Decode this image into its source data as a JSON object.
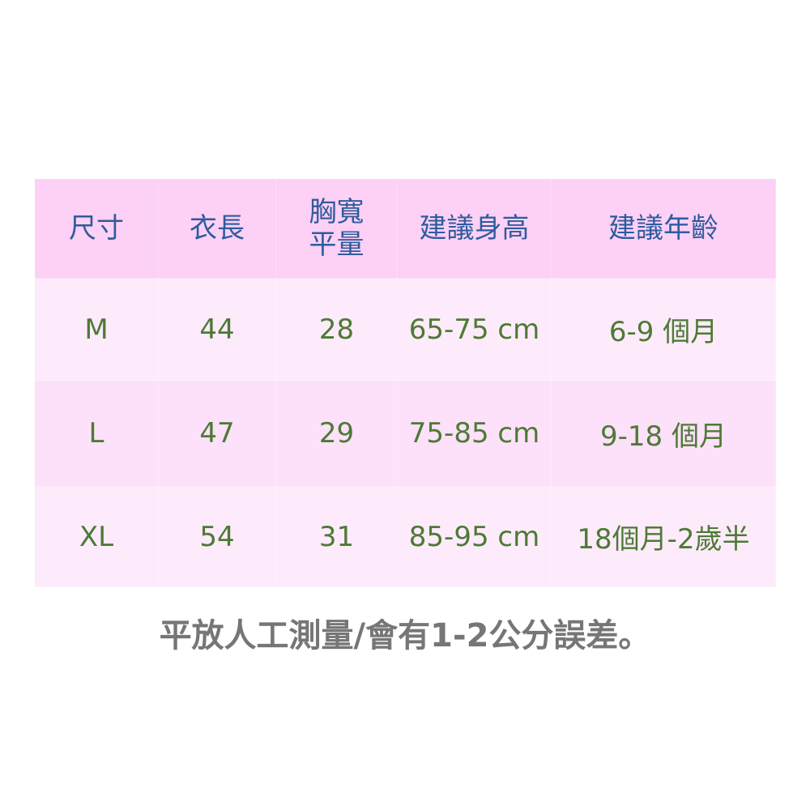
{
  "headers": [
    "尺寸",
    "衣長",
    "胸寬\n平量",
    "建議身高",
    "建議年齡"
  ],
  "headers_lines": {
    "chest_line1": "胸寬",
    "chest_line2": "平量"
  },
  "rows": [
    [
      "M",
      "44",
      "28",
      "65-75 cm",
      "6-9 個月"
    ],
    [
      "L",
      "47",
      "29",
      "75-85 cm",
      "9-18 個月"
    ],
    [
      "XL",
      "54",
      "31",
      "85-95 cm",
      "18個月-2歲半"
    ]
  ],
  "note": "平放人工測量/會有1-2公分誤差。",
  "colors": {
    "header_bg": "#fdd0f6",
    "header_text": "#2f5c9c",
    "cell_text": "#4d7a35",
    "note_text": "#767676"
  }
}
